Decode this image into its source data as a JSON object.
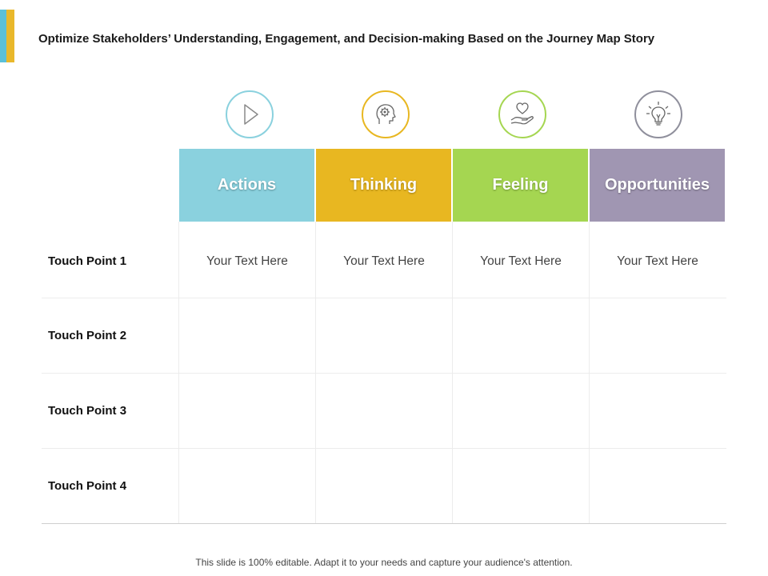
{
  "title": "Optimize Stakeholders’ Understanding, Engagement, and Decision-making Based on the Journey Map Story",
  "columns": [
    {
      "label": "Actions",
      "color": "#8ad1de",
      "icon": "play-icon",
      "icon_color": "#8ad1de"
    },
    {
      "label": "Thinking",
      "color": "#e8b721",
      "icon": "head-gear-icon",
      "icon_color": "#e8b721"
    },
    {
      "label": "Feeling",
      "color": "#a5d651",
      "icon": "hand-heart-icon",
      "icon_color": "#a5d651"
    },
    {
      "label": "Opportunities",
      "color": "#a096b2",
      "icon": "lightbulb-icon",
      "icon_color": "#8f8f9c"
    }
  ],
  "rows": [
    {
      "label": "Touch Point 1",
      "cells": [
        "Your Text Here",
        "Your Text Here",
        "Your Text Here",
        "Your Text Here"
      ]
    },
    {
      "label": "Touch Point 2",
      "cells": [
        "",
        "",
        "",
        ""
      ]
    },
    {
      "label": "Touch Point 3",
      "cells": [
        "",
        "",
        "",
        ""
      ]
    },
    {
      "label": "Touch Point 4",
      "cells": [
        "",
        "",
        "",
        ""
      ]
    }
  ],
  "footer": "This slide is 100% editable. Adapt it to your needs and capture your audience's attention."
}
